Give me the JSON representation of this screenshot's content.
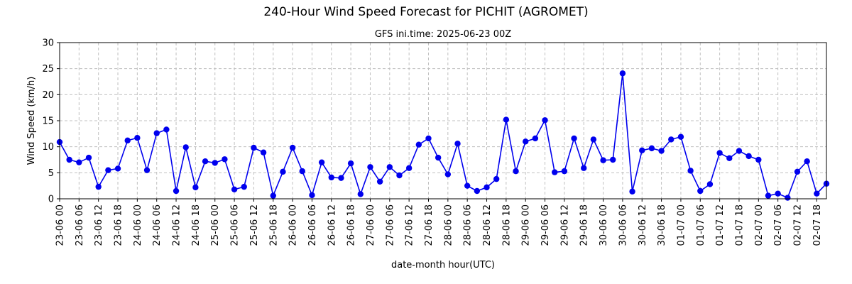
{
  "chart_data": {
    "type": "line",
    "title": "240-Hour Wind Speed Forecast for PICHIT (AGROMET)",
    "subtitle": "GFS ini.time: 2025-06-23 00Z",
    "xlabel": "date-month hour(UTC)",
    "ylabel": "Wind Speed (km/h)",
    "ylim": [
      0,
      30
    ],
    "yticks": [
      0,
      5,
      10,
      15,
      20,
      25,
      30
    ],
    "grid": true,
    "line_color": "#0000ee",
    "x_interval_hours": 3,
    "x_tick_labels": [
      "23-06 00",
      "23-06 06",
      "23-06 12",
      "23-06 18",
      "24-06 00",
      "24-06 06",
      "24-06 12",
      "24-06 18",
      "25-06 00",
      "25-06 06",
      "25-06 12",
      "25-06 18",
      "26-06 00",
      "26-06 06",
      "26-06 12",
      "26-06 18",
      "27-06 00",
      "27-06 06",
      "27-06 12",
      "27-06 18",
      "28-06 00",
      "28-06 06",
      "28-06 12",
      "28-06 18",
      "29-06 00",
      "29-06 06",
      "29-06 12",
      "29-06 18",
      "30-06 00",
      "30-06 06",
      "30-06 12",
      "30-06 18",
      "01-07 00",
      "01-07 06",
      "01-07 12",
      "01-07 18",
      "02-07 00",
      "02-07 06",
      "02-07 12",
      "02-07 18"
    ],
    "values": [
      10.9,
      7.5,
      7.0,
      7.9,
      2.3,
      5.5,
      5.8,
      11.2,
      11.7,
      5.5,
      12.6,
      13.3,
      1.5,
      9.9,
      2.2,
      7.2,
      6.9,
      7.6,
      1.8,
      2.3,
      9.8,
      8.9,
      0.6,
      5.2,
      9.8,
      5.3,
      0.7,
      7.0,
      4.1,
      4.0,
      6.8,
      0.9,
      6.1,
      3.3,
      6.1,
      4.5,
      5.9,
      10.4,
      11.6,
      7.9,
      4.7,
      10.6,
      2.5,
      1.5,
      2.2,
      3.8,
      15.2,
      5.3,
      11.0,
      11.6,
      15.1,
      5.1,
      5.3,
      11.6,
      5.9,
      11.4,
      7.4,
      7.5,
      24.1,
      1.4,
      9.3,
      9.7,
      9.2,
      11.4,
      11.9,
      5.4,
      1.5,
      2.8,
      8.8,
      7.8,
      9.2,
      8.2,
      7.5,
      0.6,
      1.0,
      0.2,
      5.2,
      7.2,
      1.0,
      2.9
    ]
  }
}
